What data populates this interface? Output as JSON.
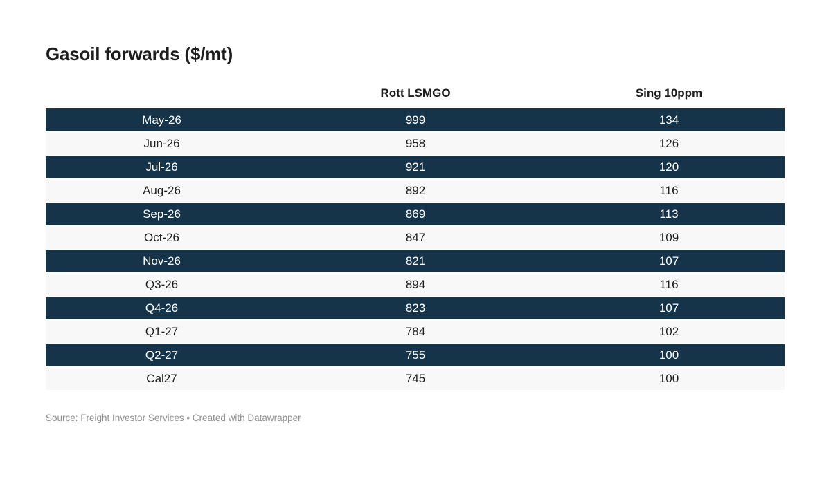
{
  "title": "Gasoil forwards ($/mt)",
  "table": {
    "headers": {
      "period": "",
      "rott": "Rott LSMGO",
      "sing": "Sing 10ppm"
    },
    "rows": [
      {
        "period": "May-26",
        "rott": "999",
        "sing": "134"
      },
      {
        "period": "Jun-26",
        "rott": "958",
        "sing": "126"
      },
      {
        "period": "Jul-26",
        "rott": "921",
        "sing": "120"
      },
      {
        "period": "Aug-26",
        "rott": "892",
        "sing": "116"
      },
      {
        "period": "Sep-26",
        "rott": "869",
        "sing": "113"
      },
      {
        "period": "Oct-26",
        "rott": "847",
        "sing": "109"
      },
      {
        "period": "Nov-26",
        "rott": "821",
        "sing": "107"
      },
      {
        "period": "Q3-26",
        "rott": "894",
        "sing": "116"
      },
      {
        "period": "Q4-26",
        "rott": "823",
        "sing": "107"
      },
      {
        "period": "Q1-27",
        "rott": "784",
        "sing": "102"
      },
      {
        "period": "Q2-27",
        "rott": "755",
        "sing": "100"
      },
      {
        "period": "Cal27",
        "rott": "745",
        "sing": "100"
      }
    ]
  },
  "footer": {
    "source": "Source: Freight Investor Services • Created with Datawrapper"
  },
  "colors": {
    "row_dark": "#15344a",
    "row_light": "#f8f8f8",
    "header_border": "#333333",
    "text_dark": "#1d1d1d",
    "text_on_dark": "#ffffff",
    "footer_text": "#8e8e8e"
  },
  "chart_data": {
    "type": "table",
    "title": "Gasoil forwards ($/mt)",
    "categories": [
      "May-26",
      "Jun-26",
      "Jul-26",
      "Aug-26",
      "Sep-26",
      "Oct-26",
      "Nov-26",
      "Q3-26",
      "Q4-26",
      "Q1-27",
      "Q2-27",
      "Cal27"
    ],
    "series": [
      {
        "name": "Rott LSMGO",
        "values": [
          999,
          958,
          921,
          892,
          869,
          847,
          821,
          894,
          823,
          784,
          755,
          745
        ]
      },
      {
        "name": "Sing 10ppm",
        "values": [
          134,
          126,
          120,
          116,
          113,
          109,
          107,
          116,
          107,
          102,
          100,
          100
        ]
      }
    ],
    "source": "Freight Investor Services",
    "layout": {
      "row_striping": "odd-rows-dark",
      "value_alignment": "center",
      "grid": false,
      "legend": "none"
    }
  }
}
